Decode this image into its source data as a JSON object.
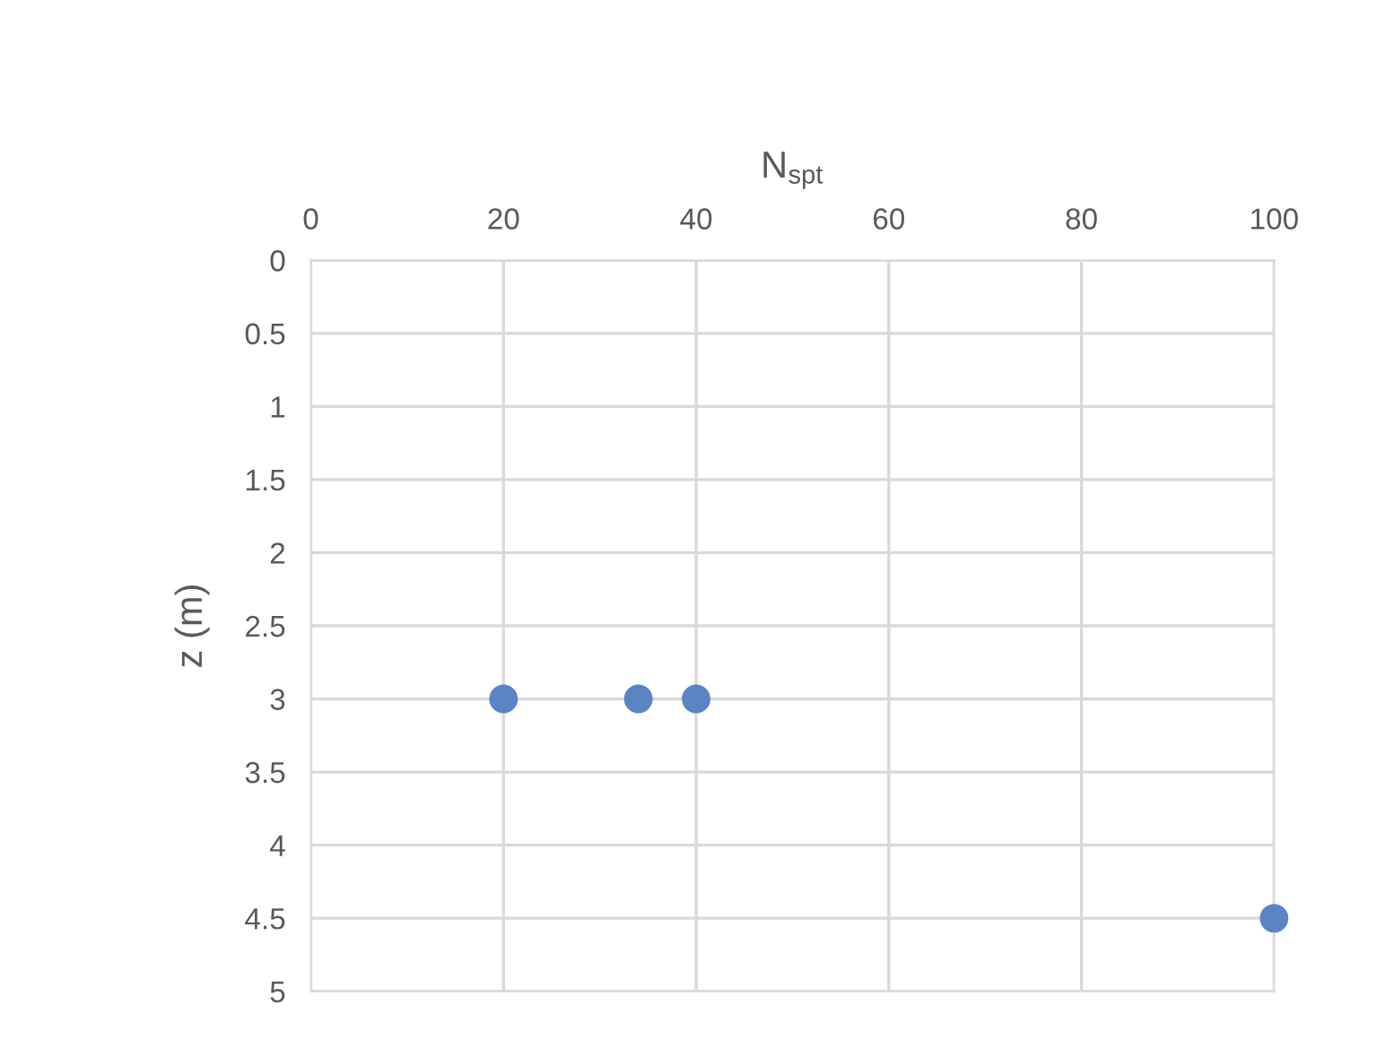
{
  "chart_data": {
    "type": "scatter",
    "xlabel": "N$_{spt}$",
    "ylabel": "z (m)",
    "x": [
      20,
      34,
      40,
      100
    ],
    "series": [
      {
        "color": "#5b84c4",
        "values": [
          3,
          3,
          3,
          4.5
        ]
      }
    ],
    "xlim": [
      0,
      100
    ],
    "xticks": [
      0,
      20,
      40,
      60,
      80,
      100
    ],
    "ylim": [
      5,
      0
    ],
    "yticks": [
      0,
      0.5,
      1,
      1.5,
      2,
      2.5,
      3,
      3.5,
      4,
      4.5,
      5
    ],
    "grid": true,
    "marker": "circle",
    "legend": false
  }
}
